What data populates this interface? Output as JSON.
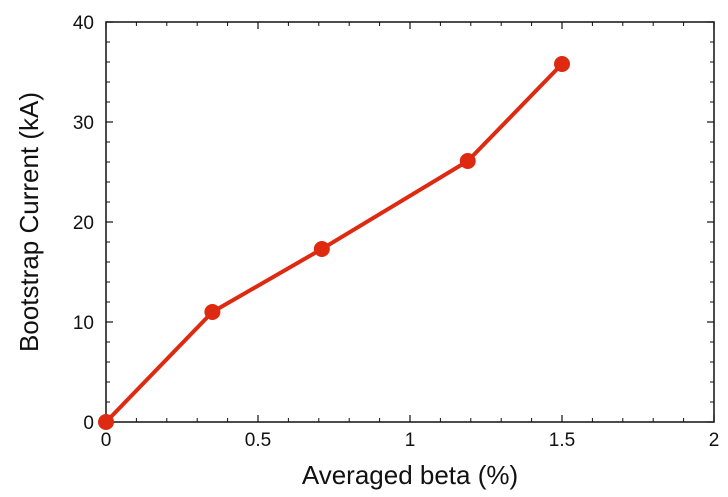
{
  "chart_data": {
    "type": "line",
    "title": "",
    "xlabel": "Averaged beta (%)",
    "ylabel": "Bootstrap Current (kA)",
    "xlim": [
      0,
      2
    ],
    "ylim": [
      0,
      40
    ],
    "x_ticks": [
      0,
      0.5,
      1,
      1.5,
      2
    ],
    "x_tick_labels": [
      "0",
      "0.5",
      "1",
      "1.5",
      "2"
    ],
    "y_ticks": [
      0,
      10,
      20,
      30,
      40
    ],
    "y_tick_labels": [
      "0",
      "10",
      "20",
      "30",
      "40"
    ],
    "grid": false,
    "series": [
      {
        "color": "#dd2a10",
        "x": [
          0,
          0.35,
          0.71,
          1.19,
          1.5
        ],
        "y": [
          0,
          11,
          17.3,
          26.1,
          35.8
        ]
      }
    ]
  }
}
